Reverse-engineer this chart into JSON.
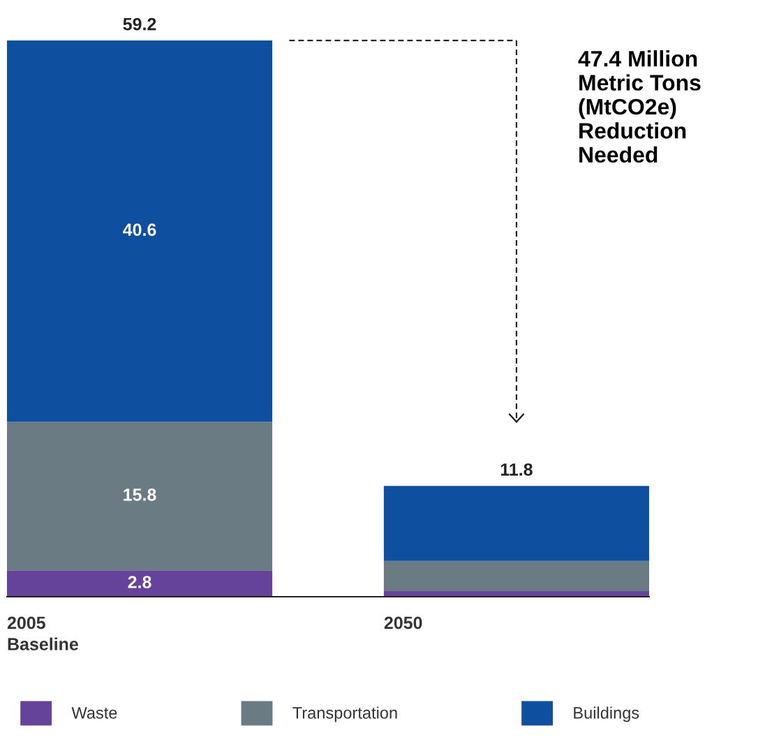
{
  "chart_data": {
    "type": "bar",
    "stacked": true,
    "categories": [
      "2005\nBaseline",
      "2050"
    ],
    "series": [
      {
        "name": "Waste",
        "color": "#65439a",
        "values": [
          2.8,
          0.6
        ],
        "value_labels": [
          "2.8",
          null
        ]
      },
      {
        "name": "Transportation",
        "color": "#6a7b83",
        "values": [
          15.8,
          3.2
        ],
        "value_labels": [
          "15.8",
          null
        ]
      },
      {
        "name": "Buildings",
        "color": "#0e4f9f",
        "values": [
          40.6,
          8.0
        ],
        "value_labels": [
          "40.6",
          null
        ]
      }
    ],
    "totals": [
      "59.2",
      "11.8"
    ],
    "annotations": [
      "47.4 Million\nMetric Tons\n(MtCO2e)\nReduction\nNeeded"
    ],
    "legend": "bottom"
  }
}
